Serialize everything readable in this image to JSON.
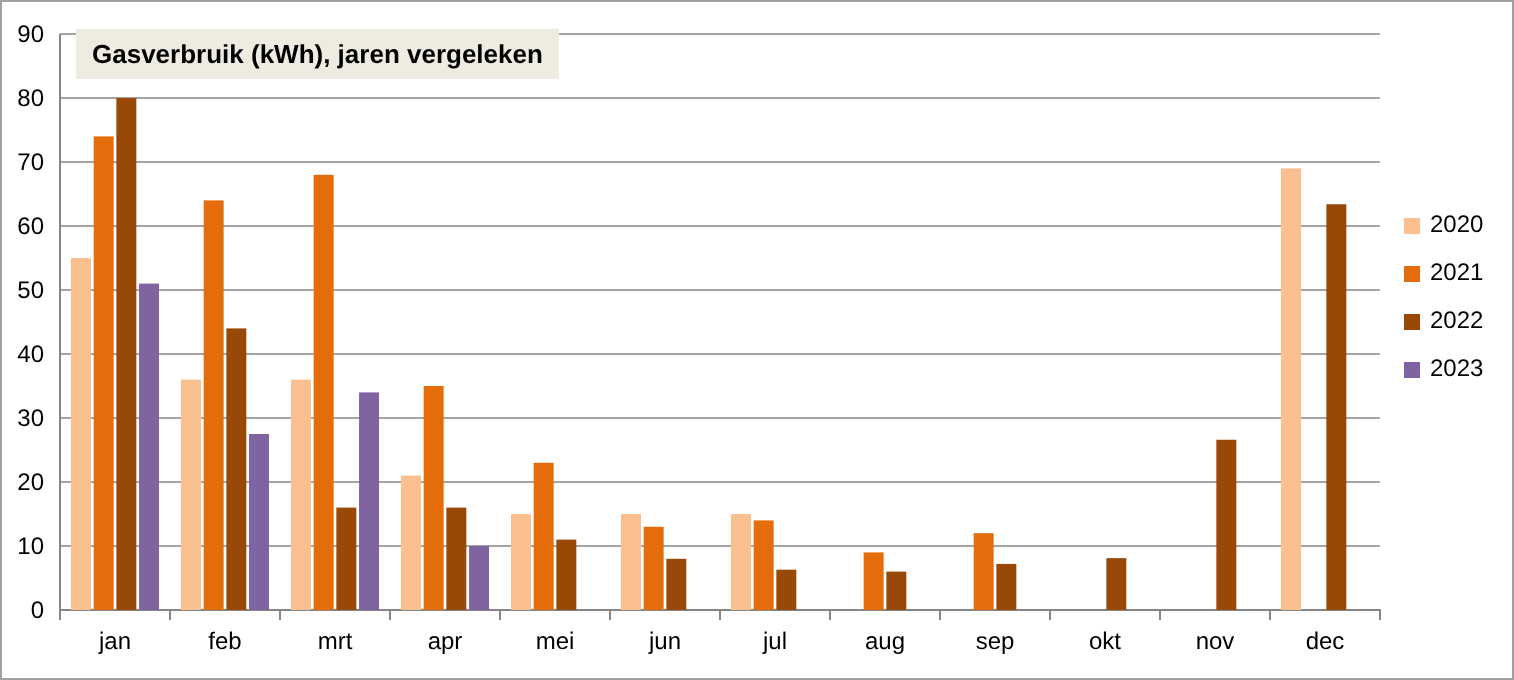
{
  "chart_data": {
    "type": "bar",
    "title": "Gasverbruik (kWh), jaren vergeleken",
    "categories": [
      "jan",
      "feb",
      "mrt",
      "apr",
      "mei",
      "jun",
      "jul",
      "aug",
      "sep",
      "okt",
      "nov",
      "dec"
    ],
    "series": [
      {
        "name": "2020",
        "color": "#fac090",
        "values": [
          55,
          36,
          36,
          21,
          15,
          15,
          15,
          null,
          null,
          null,
          null,
          69
        ]
      },
      {
        "name": "2021",
        "color": "#e46c0a",
        "values": [
          74,
          64,
          68,
          35,
          23,
          13,
          14,
          9,
          12,
          null,
          null,
          null
        ]
      },
      {
        "name": "2022",
        "color": "#984807",
        "values": [
          80,
          44,
          16,
          16,
          11,
          8,
          6.3,
          6,
          7.2,
          8.1,
          26.6,
          63.4
        ]
      },
      {
        "name": "2023",
        "color": "#8064a2",
        "values": [
          51,
          27.5,
          34,
          10,
          null,
          null,
          null,
          null,
          null,
          null,
          null,
          null
        ]
      }
    ],
    "ylim": [
      0,
      90
    ],
    "yticks": [
      0,
      10,
      20,
      30,
      40,
      50,
      60,
      70,
      80,
      90
    ],
    "grid": "y",
    "legend": "right"
  }
}
